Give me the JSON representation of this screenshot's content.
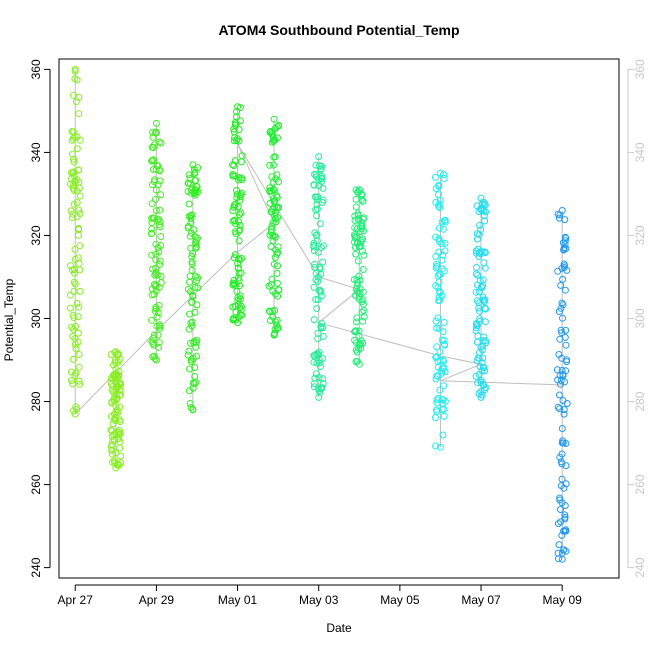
{
  "chart_data": {
    "type": "scatter",
    "title": "ATOM4 Southbound Potential_Temp",
    "xlabel": "Date",
    "ylabel": "Potential_Temp",
    "xlim": [
      -0.4,
      13.4
    ],
    "ylim": [
      237.5,
      362.5
    ],
    "x_ticks": [
      {
        "label": "Apr 27",
        "value": 0
      },
      {
        "label": "Apr 29",
        "value": 2
      },
      {
        "label": "May 01",
        "value": 4
      },
      {
        "label": "May 03",
        "value": 6
      },
      {
        "label": "May 05",
        "value": 8
      },
      {
        "label": "May 07",
        "value": 10
      },
      {
        "label": "May 09",
        "value": 12
      }
    ],
    "y_ticks": [
      240,
      260,
      280,
      300,
      320,
      340,
      360
    ],
    "right_axis_ticks": [
      240,
      260,
      280,
      300,
      320,
      340,
      360
    ],
    "grid": false,
    "legend": "none",
    "connector_color": "#bebebe",
    "axis_color": "#000000",
    "right_axis_color": "#c8c8c8",
    "series": [
      {
        "x": 0.0,
        "y_min": 277,
        "y_max": 360,
        "color": "#88ee22"
      },
      {
        "x": 1.0,
        "y_min": 264,
        "y_max": 292,
        "color": "#88ee22"
      },
      {
        "x": 2.0,
        "y_min": 290,
        "y_max": 347,
        "color": "#44ee22"
      },
      {
        "x": 2.9,
        "y_min": 278,
        "y_max": 337,
        "color": "#33ee22"
      },
      {
        "x": 4.0,
        "y_min": 299,
        "y_max": 351,
        "color": "#22ee22"
      },
      {
        "x": 4.9,
        "y_min": 296,
        "y_max": 348,
        "color": "#22ee33"
      },
      {
        "x": 6.0,
        "y_min": 281,
        "y_max": 339,
        "color": "#22ee99"
      },
      {
        "x": 7.0,
        "y_min": 289,
        "y_max": 331,
        "color": "#22ee77"
      },
      {
        "x": 9.0,
        "y_min": 269,
        "y_max": 335,
        "color": "#22eeee"
      },
      {
        "x": 10.0,
        "y_min": 281,
        "y_max": 329,
        "color": "#22ddee"
      },
      {
        "x": 12.0,
        "y_min": 242,
        "y_max": 326,
        "color": "#2299ee"
      }
    ],
    "connector_path": [
      {
        "x": 0.0,
        "y": 277
      },
      {
        "x": 2.0,
        "y": 297
      },
      {
        "x": 4.0,
        "y": 316
      },
      {
        "x": 4.9,
        "y": 323
      },
      {
        "x": 4.0,
        "y": 342
      },
      {
        "x": 6.0,
        "y": 310
      },
      {
        "x": 7.0,
        "y": 307
      },
      {
        "x": 6.0,
        "y": 299
      },
      {
        "x": 9.0,
        "y": 291
      },
      {
        "x": 10.0,
        "y": 289
      },
      {
        "x": 9.0,
        "y": 285
      },
      {
        "x": 12.0,
        "y": 284
      }
    ]
  }
}
